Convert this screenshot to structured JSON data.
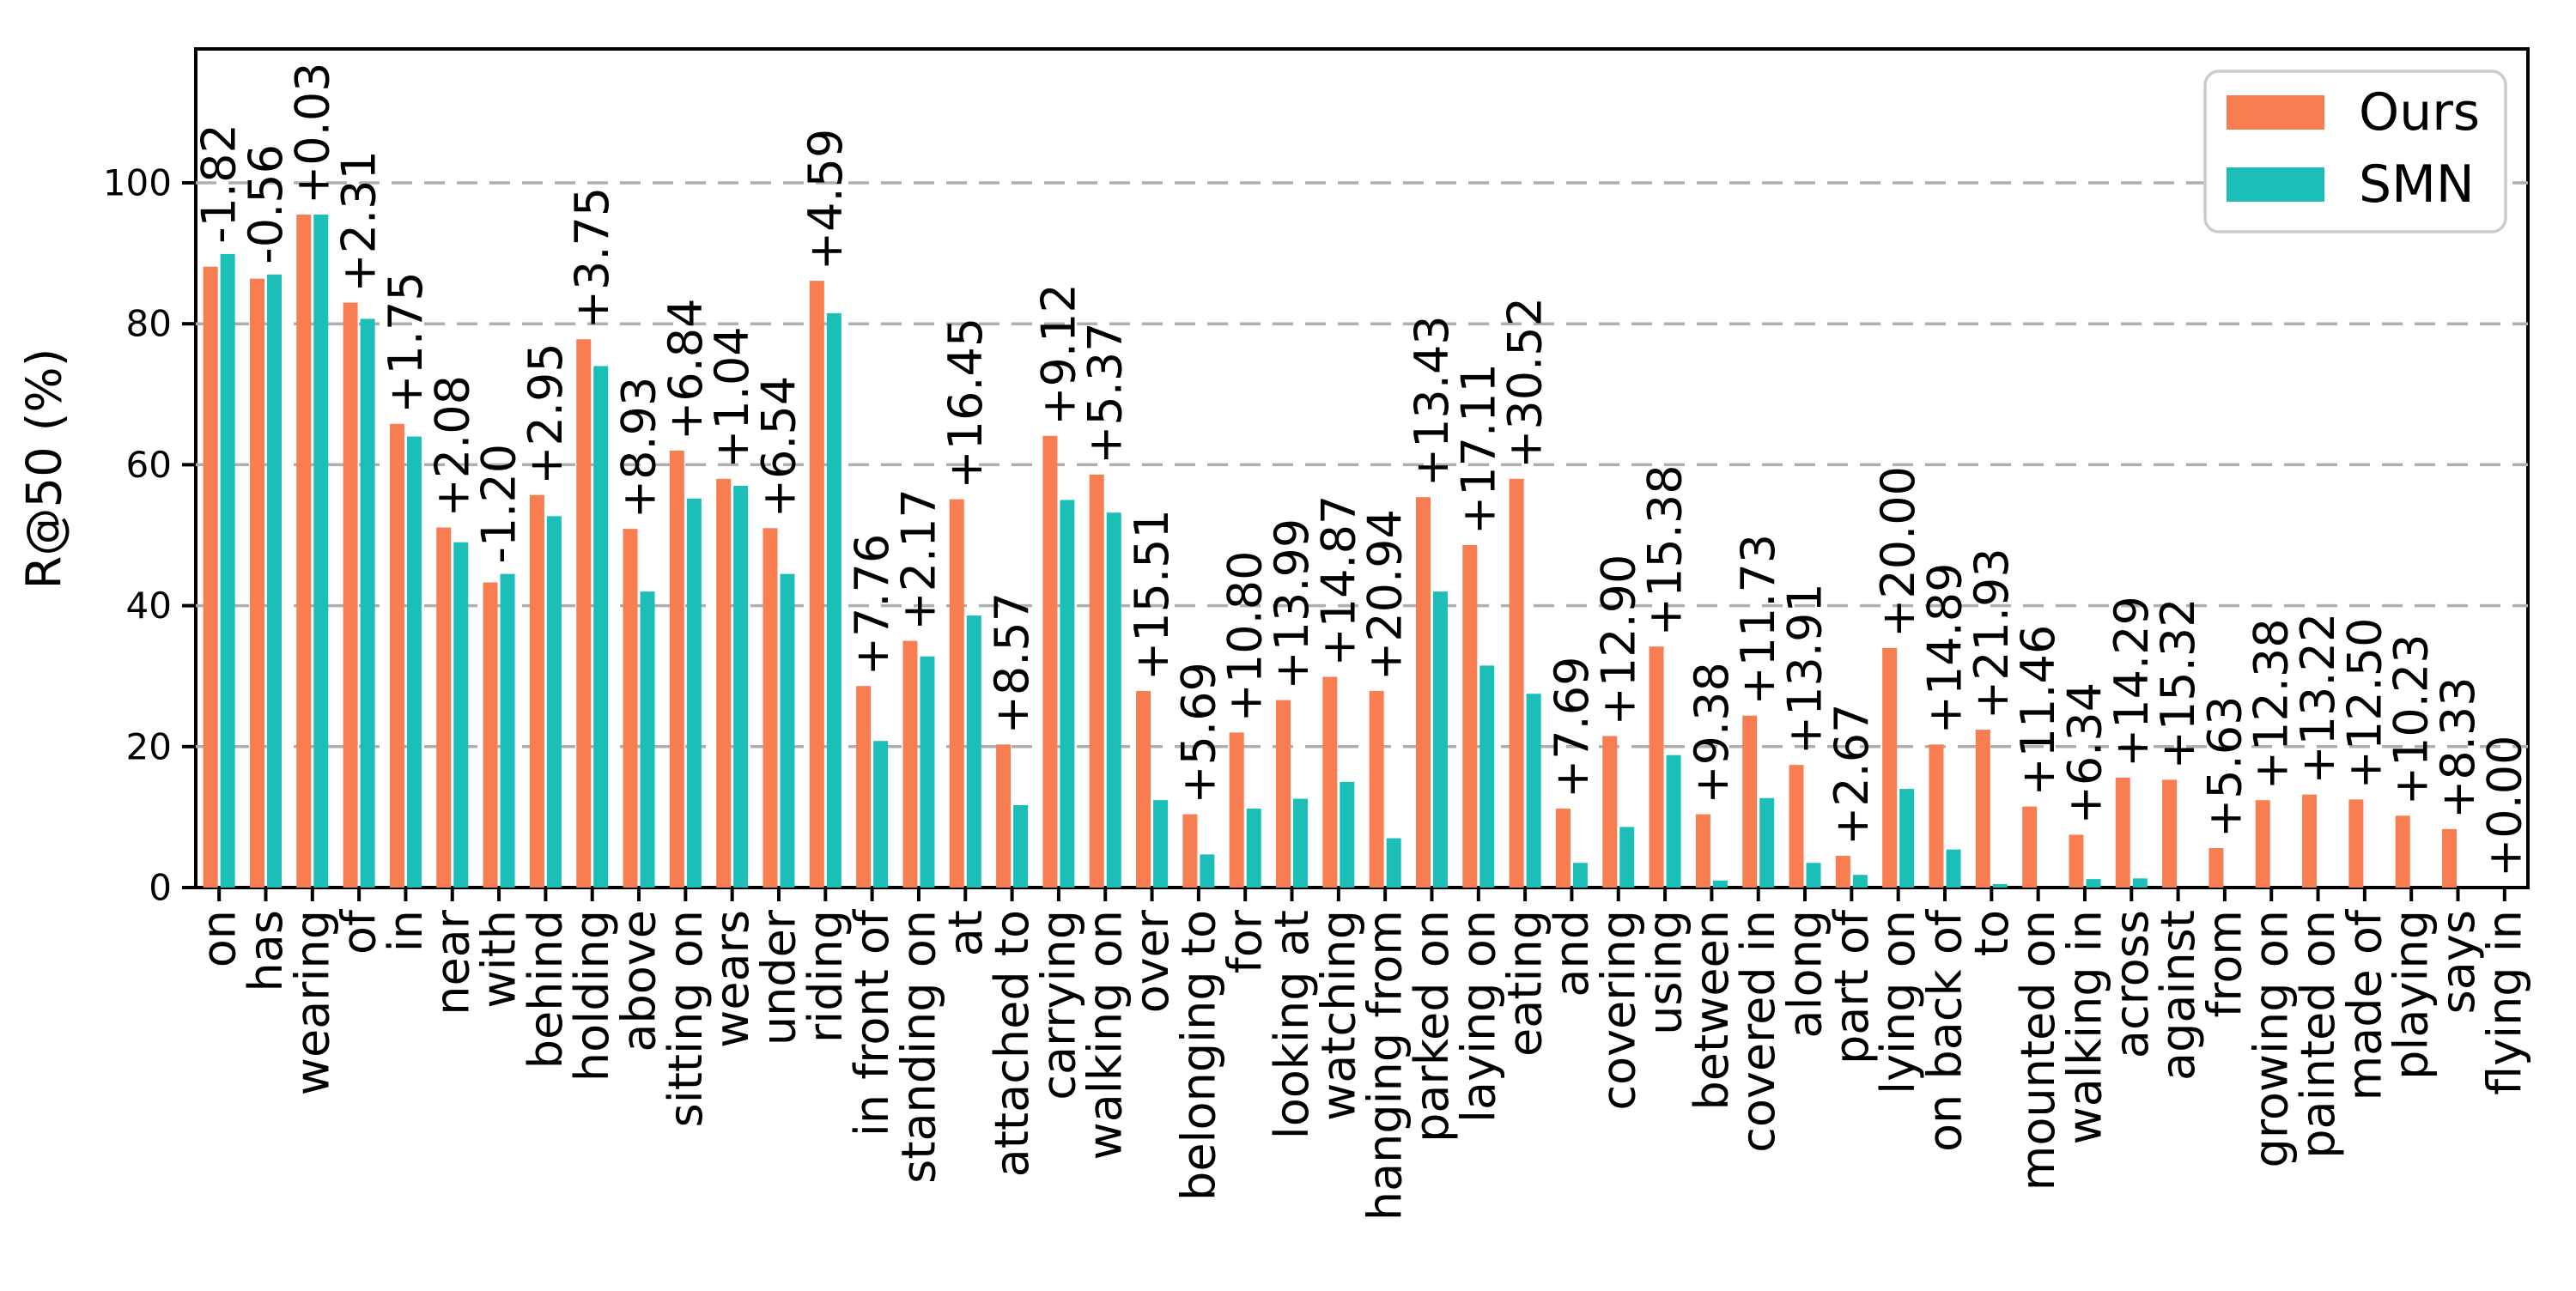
{
  "chart_data": {
    "type": "bar",
    "title": "",
    "xlabel": "",
    "ylabel": "R@50 (%)",
    "ylim": [
      0,
      119
    ],
    "yticks": [
      0,
      20,
      40,
      60,
      80,
      100
    ],
    "grid": "horizontal dashed gray lines at y ticks",
    "legend_position": "upper right",
    "bar_annotation_style": "difference (Ours - SMN) printed vertically above each bar pair",
    "categories": [
      "on",
      "has",
      "wearing",
      "of",
      "in",
      "near",
      "with",
      "behind",
      "holding",
      "above",
      "sitting on",
      "wears",
      "under",
      "riding",
      "in front of",
      "standing on",
      "at",
      "attached to",
      "carrying",
      "walking on",
      "over",
      "belonging to",
      "for",
      "looking at",
      "watching",
      "hanging from",
      "parked on",
      "laying on",
      "eating",
      "and",
      "covering",
      "using",
      "between",
      "covered in",
      "along",
      "part of",
      "lying on",
      "on back of",
      "to",
      "mounted on",
      "walking in",
      "across",
      "against",
      "from",
      "growing on",
      "painted on",
      "made of",
      "playing",
      "says",
      "flying in"
    ],
    "series": [
      {
        "name": "Ours",
        "color": "#F87D51",
        "values": [
          88.1,
          86.4,
          95.5,
          83.0,
          65.8,
          51.1,
          43.3,
          55.7,
          77.8,
          50.9,
          62.0,
          58.0,
          51.0,
          86.1,
          28.6,
          35.0,
          55.1,
          20.3,
          64.1,
          58.6,
          27.9,
          10.4,
          22.0,
          26.6,
          29.9,
          27.9,
          55.4,
          48.6,
          58.0,
          11.2,
          21.5,
          34.2,
          10.4,
          24.4,
          17.4,
          4.5,
          34.0,
          20.3,
          22.4,
          11.5,
          7.5,
          15.6,
          15.3,
          5.6,
          12.4,
          13.2,
          12.5,
          10.2,
          8.3,
          0.0
        ]
      },
      {
        "name": "SMN",
        "color": "#1CBEB8",
        "values": [
          89.9,
          87.0,
          95.5,
          80.7,
          64.0,
          49.0,
          44.5,
          52.7,
          74.0,
          42.0,
          55.2,
          57.0,
          44.5,
          81.5,
          20.8,
          32.8,
          38.6,
          11.7,
          55.0,
          53.2,
          12.4,
          4.7,
          11.2,
          12.6,
          15.0,
          7.0,
          42.0,
          31.5,
          27.5,
          3.5,
          8.6,
          18.8,
          1.0,
          12.7,
          3.5,
          1.8,
          14.0,
          5.4,
          0.5,
          0.0,
          1.2,
          1.3,
          0.0,
          0.0,
          0.0,
          0.0,
          0.0,
          0.0,
          0.0,
          0.0
        ]
      }
    ],
    "annotations": [
      "-1.82",
      "-0.56",
      "+0.03",
      "+2.31",
      "+1.75",
      "+2.08",
      "-1.20",
      "+2.95",
      "+3.75",
      "+8.93",
      "+6.84",
      "+1.04",
      "+6.54",
      "+4.59",
      "+7.76",
      "+2.17",
      "+16.45",
      "+8.57",
      "+9.12",
      "+5.37",
      "+15.51",
      "+5.69",
      "+10.80",
      "+13.99",
      "+14.87",
      "+20.94",
      "+13.43",
      "+17.11",
      "+30.52",
      "+7.69",
      "+12.90",
      "+15.38",
      "+9.38",
      "+11.73",
      "+13.91",
      "+2.67",
      "+20.00",
      "+14.89",
      "+21.93",
      "+11.46",
      "+6.34",
      "+14.29",
      "+15.32",
      "+5.63",
      "+12.38",
      "+13.22",
      "+12.50",
      "+10.23",
      "+8.33",
      "+0.00"
    ]
  },
  "legend": {
    "items": [
      {
        "label": "Ours",
        "color": "#F87D51"
      },
      {
        "label": "SMN",
        "color": "#1CBEB8"
      }
    ]
  },
  "axes": {
    "y_axis_label": "R@50 (%)",
    "y_tick_labels": [
      "0",
      "20",
      "40",
      "60",
      "80",
      "100"
    ]
  }
}
